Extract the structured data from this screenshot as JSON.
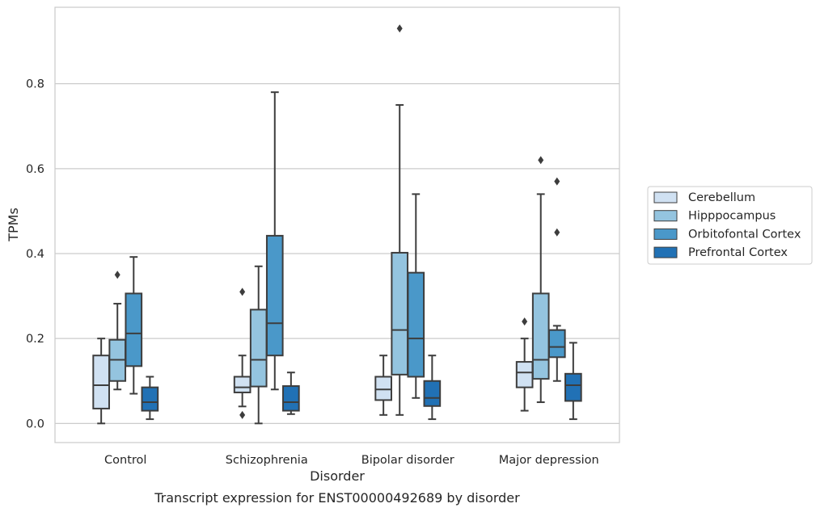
{
  "caption": "Transcript expression for ENST00000492689 by disorder",
  "chart_data": {
    "type": "boxplot",
    "xlabel": "Disorder",
    "ylabel": "TPMs",
    "ylim": [
      -0.045,
      0.98
    ],
    "yticks": [
      "0.0",
      "0.2",
      "0.4",
      "0.6",
      "0.8"
    ],
    "grid": "horizontal",
    "legend_position": "right",
    "categories": [
      "Control",
      "Schizophrenia",
      "Bipolar disorder",
      "Major depression"
    ],
    "series": [
      {
        "name": "Cerebellum",
        "color": "#d0e1f2",
        "boxes": [
          {
            "whisker_low": 0.0,
            "q1": 0.035,
            "median": 0.09,
            "q3": 0.16,
            "whisker_high": 0.2,
            "outliers": []
          },
          {
            "whisker_low": 0.04,
            "q1": 0.073,
            "median": 0.085,
            "q3": 0.11,
            "whisker_high": 0.16,
            "outliers": [
              0.31,
              0.02
            ]
          },
          {
            "whisker_low": 0.02,
            "q1": 0.055,
            "median": 0.08,
            "q3": 0.11,
            "whisker_high": 0.16,
            "outliers": []
          },
          {
            "whisker_low": 0.03,
            "q1": 0.085,
            "median": 0.12,
            "q3": 0.145,
            "whisker_high": 0.2,
            "outliers": [
              0.24
            ]
          }
        ]
      },
      {
        "name": "Hipppocampus",
        "color": "#94c4df",
        "boxes": [
          {
            "whisker_low": 0.08,
            "q1": 0.1,
            "median": 0.15,
            "q3": 0.197,
            "whisker_high": 0.282,
            "outliers": [
              0.35
            ]
          },
          {
            "whisker_low": 0.0,
            "q1": 0.087,
            "median": 0.15,
            "q3": 0.268,
            "whisker_high": 0.37,
            "outliers": []
          },
          {
            "whisker_low": 0.02,
            "q1": 0.115,
            "median": 0.22,
            "q3": 0.402,
            "whisker_high": 0.75,
            "outliers": [
              0.93
            ]
          },
          {
            "whisker_low": 0.05,
            "q1": 0.105,
            "median": 0.15,
            "q3": 0.306,
            "whisker_high": 0.54,
            "outliers": [
              0.62
            ]
          }
        ]
      },
      {
        "name": "Orbitofontal Cortex",
        "color": "#4a98c9",
        "boxes": [
          {
            "whisker_low": 0.07,
            "q1": 0.135,
            "median": 0.212,
            "q3": 0.306,
            "whisker_high": 0.392,
            "outliers": []
          },
          {
            "whisker_low": 0.08,
            "q1": 0.16,
            "median": 0.236,
            "q3": 0.442,
            "whisker_high": 0.78,
            "outliers": []
          },
          {
            "whisker_low": 0.06,
            "q1": 0.11,
            "median": 0.2,
            "q3": 0.355,
            "whisker_high": 0.54,
            "outliers": []
          },
          {
            "whisker_low": 0.1,
            "q1": 0.156,
            "median": 0.18,
            "q3": 0.22,
            "whisker_high": 0.23,
            "outliers": [
              0.57,
              0.45
            ]
          }
        ]
      },
      {
        "name": "Prefrontal Cortex",
        "color": "#2171b5",
        "boxes": [
          {
            "whisker_low": 0.01,
            "q1": 0.03,
            "median": 0.05,
            "q3": 0.085,
            "whisker_high": 0.11,
            "outliers": []
          },
          {
            "whisker_low": 0.022,
            "q1": 0.03,
            "median": 0.05,
            "q3": 0.088,
            "whisker_high": 0.12,
            "outliers": []
          },
          {
            "whisker_low": 0.01,
            "q1": 0.041,
            "median": 0.06,
            "q3": 0.1,
            "whisker_high": 0.16,
            "outliers": []
          },
          {
            "whisker_low": 0.01,
            "q1": 0.053,
            "median": 0.09,
            "q3": 0.117,
            "whisker_high": 0.19,
            "outliers": []
          }
        ]
      }
    ]
  }
}
